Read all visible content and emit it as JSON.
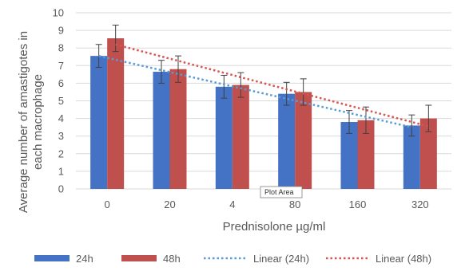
{
  "chart_data": {
    "type": "bar",
    "title": "",
    "xlabel": "Prednisolone µg/ml",
    "ylabel": "Average number of amastigotes in each macrophage",
    "ylabel_lines": [
      "Average number of amastigotes in",
      "each macrophage"
    ],
    "categories": [
      "0",
      "20",
      "4",
      "80",
      "160",
      "320"
    ],
    "ylim": [
      0,
      10
    ],
    "yticks": [
      0,
      1,
      2,
      3,
      4,
      5,
      6,
      7,
      8,
      9,
      10
    ],
    "grid": true,
    "legend_position": "bottom",
    "series": [
      {
        "name": "24h",
        "color": "#4472C4",
        "values": [
          7.55,
          6.65,
          5.8,
          5.4,
          3.8,
          3.6
        ],
        "error": [
          0.65,
          0.65,
          0.65,
          0.65,
          0.65,
          0.6
        ]
      },
      {
        "name": "48h",
        "color": "#C0504D",
        "values": [
          8.55,
          6.8,
          5.9,
          5.5,
          3.9,
          4.0
        ],
        "error": [
          0.75,
          0.75,
          0.7,
          0.75,
          0.75,
          0.75
        ]
      }
    ],
    "trendlines": [
      {
        "name": "Linear (24h)",
        "color": "#5B9BD5",
        "start": 7.55,
        "end": 3.5
      },
      {
        "name": "Linear (48h)",
        "color": "#D9534F",
        "start": 8.2,
        "end": 3.55
      }
    ],
    "tooltip": "Plot Area"
  }
}
